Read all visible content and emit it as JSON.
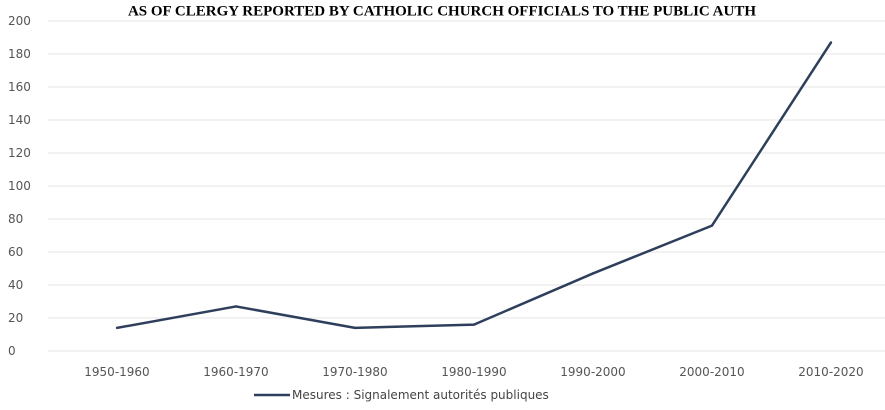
{
  "chart_data": {
    "type": "line",
    "title": "AS OF CLERGY REPORTED BY CATHOLIC CHURCH OFFICIALS TO THE PUBLIC AUTH",
    "categories": [
      "1950-1960",
      "1960-1970",
      "1970-1980",
      "1980-1990",
      "1990-2000",
      "2000-2010",
      "2010-2020"
    ],
    "series": [
      {
        "name": "Mesures : Signalement autorités publiques",
        "values": [
          14,
          27,
          14,
          16,
          47,
          76,
          187
        ],
        "color": "#2e3f5c"
      }
    ],
    "yticks": [
      "0",
      "20",
      "40",
      "60",
      "80",
      "100",
      "120",
      "140",
      "160",
      "180",
      "200"
    ],
    "ylim": [
      0,
      200
    ],
    "grid": true,
    "legend_position": "bottom"
  }
}
